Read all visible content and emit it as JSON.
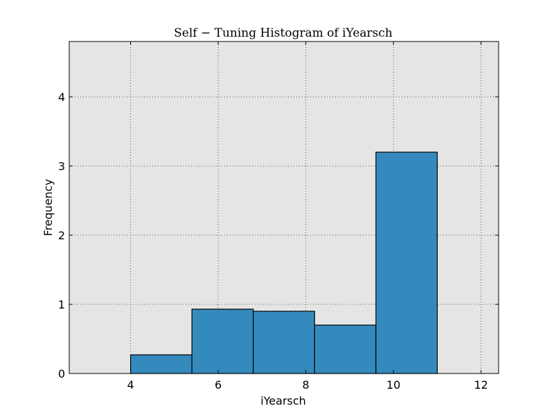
{
  "chart_data": {
    "type": "bar",
    "title": "Self − Tuning Histogram of iYearsch",
    "xlabel": "iYearsch",
    "ylabel": "Frequency",
    "xlim": [
      2.6,
      12.4
    ],
    "ylim": [
      0,
      4.8
    ],
    "x_ticks": [
      4,
      6,
      8,
      10,
      12
    ],
    "y_ticks": [
      0,
      1,
      2,
      3,
      4
    ],
    "grid": true,
    "bins": [
      {
        "start": 4.0,
        "end": 5.4,
        "value": 0.27
      },
      {
        "start": 5.4,
        "end": 6.8,
        "value": 0.93
      },
      {
        "start": 6.8,
        "end": 8.2,
        "value": 0.9
      },
      {
        "start": 8.2,
        "end": 9.6,
        "value": 0.7
      },
      {
        "start": 9.6,
        "end": 11.0,
        "value": 3.2
      }
    ],
    "colors": {
      "bar": "#348abd",
      "bar_edge": "#000000",
      "background": "#e5e5e5",
      "grid": "#555555"
    }
  }
}
